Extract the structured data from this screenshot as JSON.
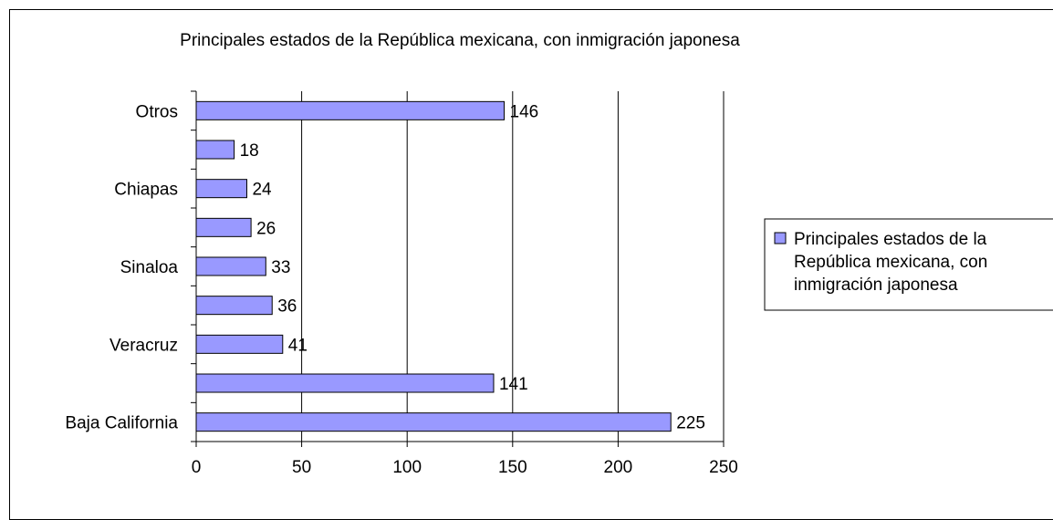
{
  "chart_data": {
    "type": "bar",
    "orientation": "horizontal",
    "title": "Principales estados de la República mexicana, con inmigración japonesa",
    "categories": [
      "Baja California",
      "",
      "Veracruz",
      "",
      "Sinaloa",
      "",
      "Chiapas",
      "",
      "Otros"
    ],
    "series": [
      {
        "name": "Principales estados de la República mexicana, con inmigración japonesa",
        "values": [
          225,
          141,
          41,
          36,
          33,
          26,
          24,
          18,
          146
        ],
        "color": "#9999ff"
      }
    ],
    "xlim": [
      0,
      250
    ],
    "xticks": [
      0,
      50,
      100,
      150,
      200,
      250
    ],
    "grid": "vertical",
    "data_labels": true,
    "legend": {
      "position": "right",
      "lines": [
        "Principales estados de la",
        "República mexicana, con",
        "inmigración japonesa"
      ]
    }
  }
}
